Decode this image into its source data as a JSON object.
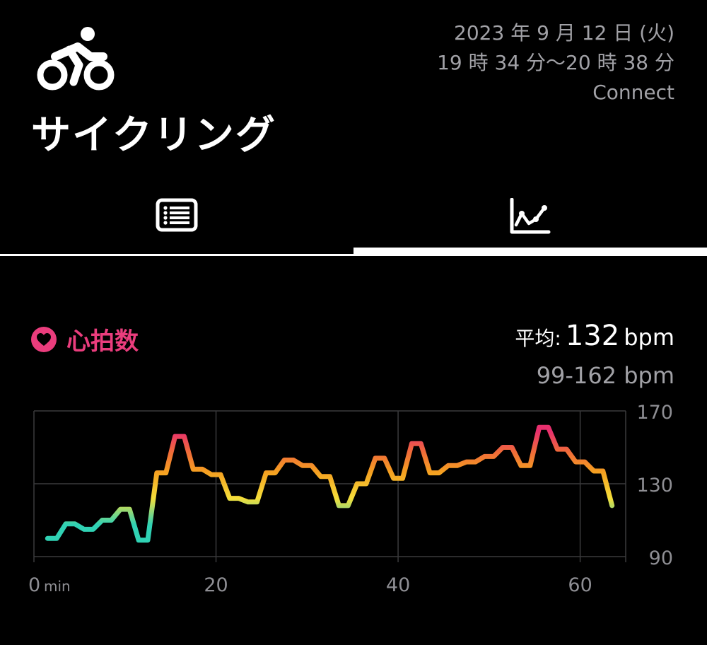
{
  "header": {
    "title": "サイクリング",
    "date": "2023 年 9 月 12 日 (火)",
    "time_range": "19 時 34 分〜20 時 38 分",
    "source": "Connect",
    "icon": "cycling-icon"
  },
  "tabs": [
    {
      "icon": "list-icon",
      "selected": false
    },
    {
      "icon": "chart-icon",
      "selected": true
    }
  ],
  "heart_rate": {
    "label": "心拍数",
    "avg_label": "平均:",
    "avg_value": "132",
    "avg_unit": "bpm",
    "range": "99-162 bpm",
    "color": "#ea3d7d"
  },
  "chart_data": {
    "type": "line",
    "xlabel": "",
    "ylabel": "",
    "x_unit": "min",
    "xlim": [
      0,
      65
    ],
    "ylim": [
      90,
      170
    ],
    "x_ticks": [
      0,
      20,
      40,
      60
    ],
    "y_ticks": [
      170,
      130,
      90
    ],
    "grid": true,
    "gradient_colors": [
      "#30d2b4",
      "#f5de3a",
      "#f5a020",
      "#f06a3a",
      "#e8306e"
    ],
    "series": [
      {
        "x": [
          1.5,
          2.5,
          3.5,
          4.5,
          5.5,
          6.5,
          7.5,
          8.5,
          9.5,
          10.5,
          11.5,
          12.5,
          13.5,
          14.5,
          15.5,
          16.5,
          17.5,
          18.5,
          19.5,
          20.5,
          21.5,
          22.5,
          23.5,
          24.5,
          25.5,
          26.5,
          27.5,
          28.5,
          29.5,
          30.5,
          31.5,
          32.5,
          33.5,
          34.5,
          35.5,
          36.5,
          37.5,
          38.5,
          39.5,
          40.5,
          41.5,
          42.5,
          43.5,
          44.5,
          45.5,
          46.5,
          47.5,
          48.5,
          49.5,
          50.5,
          51.5,
          52.5,
          53.5,
          54.5,
          55.5,
          56.5,
          57.5,
          58.5,
          59.5,
          60.5,
          61.5,
          62.5,
          63.5
        ],
        "y": [
          100,
          100,
          108,
          108,
          105,
          105,
          110,
          110,
          116,
          116,
          99,
          99,
          136,
          136,
          156,
          156,
          138,
          138,
          135,
          135,
          122,
          122,
          120,
          120,
          136,
          136,
          143,
          143,
          140,
          140,
          134,
          134,
          118,
          118,
          130,
          130,
          144,
          144,
          133,
          133,
          152,
          152,
          136,
          136,
          140,
          140,
          142,
          142,
          145,
          145,
          150,
          150,
          140,
          140,
          161,
          161,
          149,
          149,
          142,
          142,
          137,
          137,
          118
        ]
      }
    ]
  }
}
